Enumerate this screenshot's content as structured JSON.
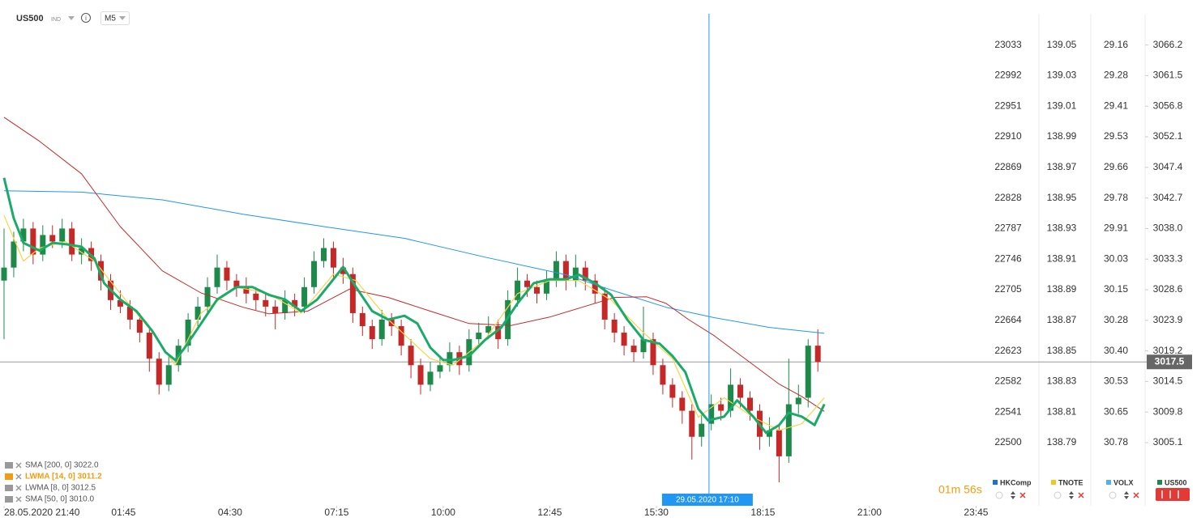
{
  "header": {
    "symbol": "US500",
    "badge": "IND",
    "timeframe": "M5"
  },
  "chart_data": {
    "type": "candlestick",
    "up_color": "#1e8a4a",
    "down_color": "#c62828",
    "x": [
      0,
      3,
      6,
      9,
      12,
      15,
      18,
      21,
      24,
      27,
      30,
      33,
      36,
      39,
      42,
      45,
      48,
      51,
      54,
      57,
      60,
      63,
      66,
      69,
      72,
      75,
      78,
      81,
      84,
      87,
      90,
      93,
      96,
      99,
      102,
      105,
      108,
      111,
      114,
      117,
      120,
      123,
      126,
      129,
      132,
      135,
      138,
      141,
      144,
      147,
      150,
      153,
      156,
      159,
      162,
      165,
      168,
      171,
      174,
      177,
      180,
      183,
      186,
      189,
      192,
      195,
      198,
      201,
      204,
      207,
      210,
      213,
      216,
      219,
      222,
      225,
      228,
      231,
      234,
      237,
      240,
      243,
      246,
      249,
      252
    ],
    "candles": [
      [
        3030,
        3038,
        3021,
        3032
      ],
      [
        3032,
        3037.5,
        3030.5,
        3036
      ],
      [
        3036,
        3039.5,
        3034.5,
        3038
      ],
      [
        3038,
        3039,
        3032.5,
        3034
      ],
      [
        3034,
        3038.5,
        3033,
        3037
      ],
      [
        3037,
        3038.5,
        3035,
        3036
      ],
      [
        3036,
        3039.5,
        3035,
        3038
      ],
      [
        3038,
        3039,
        3033,
        3034
      ],
      [
        3034,
        3036.5,
        3032.5,
        3035
      ],
      [
        3035,
        3036,
        3031.5,
        3033
      ],
      [
        3033,
        3034,
        3028.5,
        3030
      ],
      [
        3030,
        3031,
        3025.5,
        3027
      ],
      [
        3027,
        3028.5,
        3025,
        3026
      ],
      [
        3026,
        3027,
        3022.5,
        3024
      ],
      [
        3024,
        3025,
        3020.5,
        3022
      ],
      [
        3022,
        3023,
        3016,
        3018
      ],
      [
        3018,
        3019,
        3012.5,
        3014
      ],
      [
        3014,
        3018.5,
        3013,
        3017
      ],
      [
        3017,
        3021,
        3016,
        3020
      ],
      [
        3020,
        3025,
        3019,
        3024
      ],
      [
        3024,
        3027.5,
        3023,
        3026
      ],
      [
        3026,
        3030.5,
        3025,
        3029
      ],
      [
        3029,
        3034,
        3028,
        3032
      ],
      [
        3032,
        3033,
        3028.5,
        3030
      ],
      [
        3030,
        3031,
        3027.5,
        3029
      ],
      [
        3029,
        3030.5,
        3026.5,
        3028
      ],
      [
        3028,
        3029,
        3025.5,
        3027
      ],
      [
        3027,
        3028,
        3024.5,
        3026
      ],
      [
        3026,
        3027,
        3022.5,
        3025
      ],
      [
        3025,
        3028.5,
        3024,
        3027
      ],
      [
        3027,
        3028,
        3024.5,
        3026
      ],
      [
        3026,
        3030.5,
        3025,
        3029
      ],
      [
        3029,
        3034.5,
        3028,
        3033
      ],
      [
        3033,
        3036.5,
        3032,
        3035
      ],
      [
        3035,
        3036,
        3030.5,
        3032
      ],
      [
        3032,
        3033.5,
        3029.5,
        3031
      ],
      [
        3031,
        3032,
        3023.5,
        3025
      ],
      [
        3025,
        3026,
        3021.5,
        3023
      ],
      [
        3023,
        3024,
        3019.5,
        3021
      ],
      [
        3021,
        3025.5,
        3020,
        3024
      ],
      [
        3024,
        3025,
        3021.5,
        3023
      ],
      [
        3023,
        3024,
        3018.5,
        3020
      ],
      [
        3020,
        3021,
        3015,
        3017
      ],
      [
        3017,
        3018,
        3012.5,
        3014
      ],
      [
        3014,
        3017.5,
        3013,
        3016
      ],
      [
        3016,
        3018.5,
        3015,
        3017
      ],
      [
        3017,
        3020.5,
        3016,
        3019
      ],
      [
        3019,
        3020,
        3015.5,
        3017
      ],
      [
        3017,
        3022.5,
        3016,
        3021
      ],
      [
        3021,
        3023.5,
        3020,
        3022
      ],
      [
        3022,
        3024.5,
        3021,
        3023
      ],
      [
        3023,
        3024,
        3019.5,
        3021
      ],
      [
        3021,
        3028.5,
        3020,
        3027
      ],
      [
        3027,
        3032,
        3026,
        3030
      ],
      [
        3030,
        3031,
        3027.5,
        3029
      ],
      [
        3029,
        3030,
        3026.5,
        3028
      ],
      [
        3028,
        3031.5,
        3027,
        3030
      ],
      [
        3030,
        3034.5,
        3029,
        3033
      ],
      [
        3033,
        3034,
        3028.5,
        3030
      ],
      [
        3030,
        3034,
        3029,
        3032
      ],
      [
        3032,
        3033,
        3028.5,
        3030
      ],
      [
        3030,
        3031,
        3026.5,
        3028
      ],
      [
        3028,
        3029,
        3022.5,
        3024
      ],
      [
        3024,
        3025,
        3020.5,
        3022
      ],
      [
        3022,
        3023,
        3018.5,
        3020
      ],
      [
        3020,
        3021,
        3017.5,
        3019
      ],
      [
        3019,
        3026,
        3018,
        3021
      ],
      [
        3021,
        3022,
        3015.5,
        3017
      ],
      [
        3017,
        3018,
        3012.5,
        3014
      ],
      [
        3014,
        3015,
        3010.5,
        3012
      ],
      [
        3012,
        3013,
        3008,
        3010
      ],
      [
        3010,
        3011,
        3002.5,
        3006
      ],
      [
        3006,
        3009.5,
        3004.5,
        3008
      ],
      [
        3008,
        3012.5,
        3007,
        3011
      ],
      [
        3011,
        3012,
        3008.5,
        3010
      ],
      [
        3010,
        3016.5,
        3009,
        3014
      ],
      [
        3014,
        3015,
        3010.5,
        3012
      ],
      [
        3012,
        3013,
        3008.5,
        3010
      ],
      [
        3010,
        3011,
        3004,
        3006
      ],
      [
        3006,
        3009,
        3004.5,
        3007
      ],
      [
        3007,
        3008,
        2999,
        3003
      ],
      [
        3003,
        3018,
        3002,
        3011
      ],
      [
        3011,
        3014,
        3009.5,
        3012
      ],
      [
        3012,
        3021,
        3010.5,
        3020
      ],
      [
        3020,
        3022.5,
        3016,
        3017.5
      ]
    ],
    "series": [
      {
        "name": "SMA [200,  0] 3022.0",
        "color": "#2196f3",
        "width": 1,
        "x": [
          0,
          24,
          49,
          74,
          99,
          124,
          149,
          174,
          189,
          205,
          220,
          237,
          254
        ],
        "values": [
          3043.8,
          3043.6,
          3042.4,
          3040.2,
          3038.3,
          3036.5,
          3033.6,
          3030.9,
          3028.4,
          3025.9,
          3024.3,
          3022.8,
          3021.9
        ]
      },
      {
        "name": "SMA [50,  0] 3010.0",
        "color": "#c62828",
        "width": 1,
        "x": [
          0,
          11,
          24,
          36,
          49,
          61,
          74,
          82,
          94,
          107,
          119,
          132,
          144,
          157,
          169,
          179,
          189,
          199,
          205,
          212,
          220,
          230,
          240,
          247,
          254
        ],
        "values": [
          3055.1,
          3051.4,
          3046.4,
          3038.3,
          3031.5,
          3028.1,
          3025.9,
          3024.9,
          3025.3,
          3028.7,
          3027.4,
          3025.3,
          3023.4,
          3023.1,
          3024.4,
          3025.9,
          3027.4,
          3027.5,
          3026.5,
          3024.0,
          3021.5,
          3017.8,
          3014.1,
          3012.2,
          3009.9
        ]
      },
      {
        "name": "LWMA [8,  0] 3012.5",
        "color": "#f5d547",
        "width": 1.2,
        "x": [
          0,
          6,
          11,
          19,
          28,
          36,
          46,
          53,
          61,
          72,
          82,
          92,
          102,
          109,
          119,
          132,
          139,
          149,
          159,
          169,
          178,
          188,
          198,
          207,
          215,
          223,
          232,
          240,
          247,
          254
        ],
        "values": [
          3040,
          3033,
          3035,
          3036,
          3033,
          3028,
          3022,
          3017,
          3025,
          3029,
          3028,
          3025,
          3031,
          3030,
          3024,
          3018,
          3017,
          3021,
          3028,
          3030,
          3030,
          3027,
          3022,
          3018,
          3009,
          3012,
          3009,
          3007,
          3008,
          3012
        ]
      },
      {
        "name": "LWMA [14,  0] 3011.2",
        "color": "#1aab6a",
        "width": 3,
        "x": [
          0,
          3,
          6,
          11,
          15,
          19,
          24,
          28,
          31,
          36,
          41,
          46,
          50,
          53,
          56,
          61,
          66,
          72,
          77,
          82,
          87,
          92,
          97,
          102,
          105,
          109,
          114,
          119,
          124,
          128,
          132,
          136,
          139,
          144,
          149,
          154,
          159,
          164,
          169,
          174,
          178,
          183,
          188,
          193,
          198,
          203,
          207,
          211,
          215,
          218,
          223,
          227,
          232,
          236,
          240,
          243,
          247,
          251,
          254
        ],
        "values": [
          3045.8,
          3039.6,
          3035.8,
          3034.6,
          3035.8,
          3035.6,
          3035.2,
          3033.4,
          3029.6,
          3027.1,
          3025.3,
          3022.2,
          3019.0,
          3017.8,
          3019.7,
          3023.4,
          3027.1,
          3029.0,
          3029.0,
          3027.8,
          3027.1,
          3025.3,
          3027.1,
          3030.2,
          3032.1,
          3029.0,
          3025.3,
          3024.0,
          3024.6,
          3023.4,
          3019.7,
          3017.8,
          3017.8,
          3018.4,
          3020.9,
          3022.8,
          3026.5,
          3029.6,
          3030.2,
          3030.2,
          3030.9,
          3029.6,
          3027.8,
          3024.0,
          3020.9,
          3020.3,
          3018.4,
          3015.9,
          3010.3,
          3008.5,
          3009.1,
          3011.6,
          3009.1,
          3006.6,
          3007.8,
          3009.7,
          3009.1,
          3007.8,
          3011.0
        ]
      }
    ],
    "highlight_series": 3,
    "xlim": [
      -0.75,
      304.4
    ],
    "xticks": [
      {
        "value": 0,
        "label": "28.05.2020 21:40"
      },
      {
        "value": 37,
        "label": "01:45"
      },
      {
        "value": 70,
        "label": "04:30"
      },
      {
        "value": 103,
        "label": "07:15"
      },
      {
        "value": 136,
        "label": "10:00"
      },
      {
        "value": 169,
        "label": "12:45"
      },
      {
        "value": 202,
        "label": "15:30"
      },
      {
        "value": 235,
        "label": "18:15"
      },
      {
        "value": 268,
        "label": "21:00"
      },
      {
        "value": 301,
        "label": "23:45"
      }
    ],
    "ylim": [
      2995.4,
      3071.0
    ],
    "yticks": [
      3066.2,
      3061.5,
      3056.8,
      3052.1,
      3047.4,
      3042.7,
      {
        "value": 3038,
        "label": "3038.0"
      },
      3033.3,
      3028.6,
      3023.9,
      3019.2,
      3014.5,
      3009.8,
      3005.1
    ],
    "current_price": 3017.5,
    "crosshair": {
      "x": 218.3,
      "label": "29.05.2020 17:10"
    },
    "timer": "01m 56s",
    "scales": [
      {
        "name": "HKComp",
        "color": "#1e6fd9",
        "ticks": [
          23033,
          22992,
          22951,
          22910,
          22869,
          22828,
          22787,
          22746,
          22705,
          22664,
          22623,
          22582,
          22541,
          22500
        ]
      },
      {
        "name": "TNOTE",
        "color": "#f5c518",
        "ticks": [
          139.05,
          139.03,
          139.01,
          138.99,
          138.97,
          138.95,
          138.93,
          138.91,
          138.89,
          138.87,
          138.85,
          138.83,
          138.81,
          138.79
        ]
      },
      {
        "name": "VOLX",
        "color": "#4fb3e8",
        "ticks": [
          29.16,
          29.28,
          29.41,
          29.53,
          29.66,
          29.78,
          29.91,
          30.03,
          30.15,
          30.28,
          {
            "value": 30.4,
            "label": "30.40"
          },
          30.53,
          30.65,
          30.78
        ]
      },
      {
        "name": "US500",
        "color": "#1e8a4a"
      }
    ]
  }
}
